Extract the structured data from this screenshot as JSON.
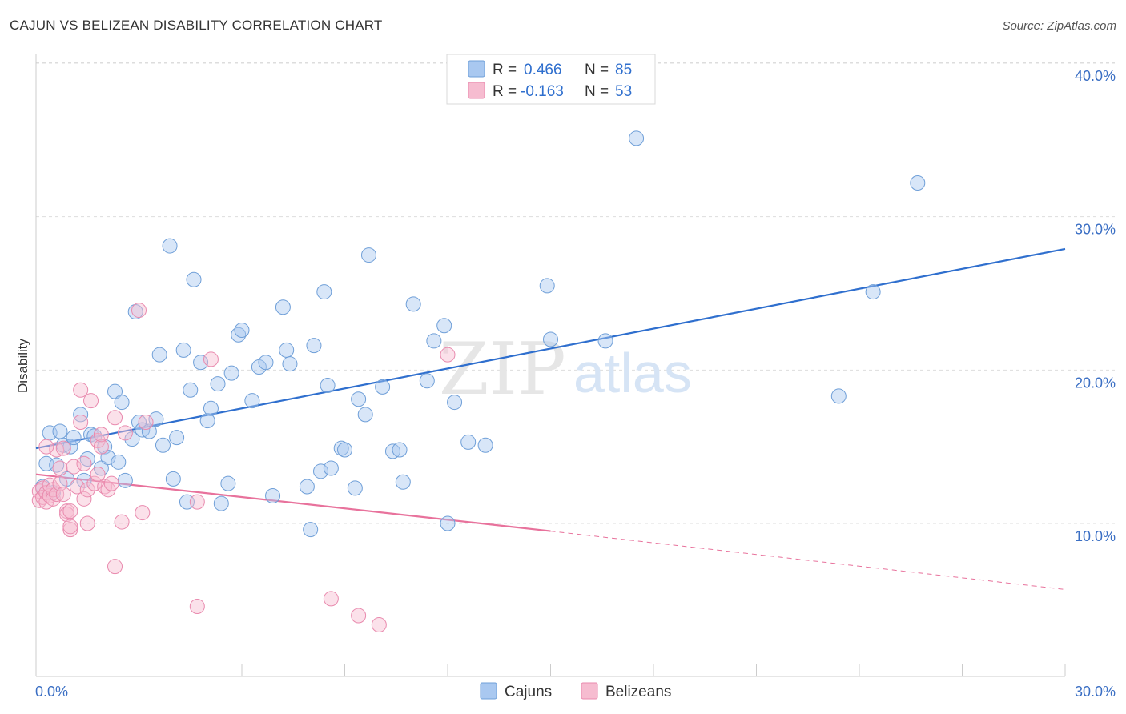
{
  "header": {
    "title": "CAJUN VS BELIZEAN DISABILITY CORRELATION CHART",
    "source": "Source: ZipAtlas.com"
  },
  "watermark": {
    "zip": "ZIP",
    "atlas": "atlas"
  },
  "colors": {
    "cajun_fill": "#a9c8f0",
    "cajun_stroke": "#6f9fd8",
    "cajun_line": "#2f6fce",
    "belizean_fill": "#f6bcd0",
    "belizean_stroke": "#e98aae",
    "belizean_line": "#e8729c",
    "axis_label": "#3b6fc4",
    "grid": "#dddddd"
  },
  "legend_box": {
    "rows": [
      {
        "r_label": "R =",
        "r_value": "0.466",
        "n_label": "N =",
        "n_value": "85"
      },
      {
        "r_label": "R =",
        "r_value": "-0.163",
        "n_label": "N =",
        "n_value": "53"
      }
    ]
  },
  "chart_data": {
    "type": "scatter",
    "title": "CAJUN VS BELIZEAN DISABILITY CORRELATION CHART",
    "xlabel": "",
    "ylabel": "Disability",
    "xlim": [
      0,
      30
    ],
    "ylim": [
      0,
      40.5
    ],
    "x_tick_labels": [
      "0.0%",
      "30.0%"
    ],
    "y_ticks": [
      10,
      20,
      30,
      40
    ],
    "y_tick_labels": [
      "10.0%",
      "20.0%",
      "30.0%",
      "40.0%"
    ],
    "grid": true,
    "legend_position": "bottom-center",
    "series": [
      {
        "name": "Cajuns",
        "r": 0.466,
        "n": 85,
        "trend": {
          "x0": 0,
          "y0": 14.9,
          "x1": 30,
          "y1": 27.9
        },
        "points": [
          [
            0.2,
            12.4
          ],
          [
            0.3,
            13.9
          ],
          [
            0.4,
            15.9
          ],
          [
            0.6,
            13.8
          ],
          [
            0.7,
            16.0
          ],
          [
            0.8,
            15.1
          ],
          [
            1.0,
            15.0
          ],
          [
            1.1,
            15.6
          ],
          [
            1.3,
            17.1
          ],
          [
            1.4,
            12.8
          ],
          [
            1.5,
            14.2
          ],
          [
            1.6,
            15.8
          ],
          [
            1.7,
            15.7
          ],
          [
            1.9,
            13.6
          ],
          [
            2.0,
            15.0
          ],
          [
            2.1,
            14.3
          ],
          [
            2.3,
            18.6
          ],
          [
            2.4,
            14.0
          ],
          [
            2.5,
            17.9
          ],
          [
            2.6,
            12.8
          ],
          [
            2.8,
            15.5
          ],
          [
            2.9,
            23.8
          ],
          [
            3.0,
            16.6
          ],
          [
            3.1,
            16.1
          ],
          [
            3.3,
            16.0
          ],
          [
            3.5,
            16.8
          ],
          [
            3.6,
            21.0
          ],
          [
            3.7,
            15.1
          ],
          [
            3.9,
            28.1
          ],
          [
            4.0,
            12.9
          ],
          [
            4.1,
            15.6
          ],
          [
            4.3,
            21.3
          ],
          [
            4.4,
            11.4
          ],
          [
            4.5,
            18.7
          ],
          [
            4.6,
            25.9
          ],
          [
            4.8,
            20.5
          ],
          [
            5.0,
            16.7
          ],
          [
            5.1,
            17.5
          ],
          [
            5.3,
            19.1
          ],
          [
            5.4,
            11.3
          ],
          [
            5.6,
            12.6
          ],
          [
            5.7,
            19.8
          ],
          [
            5.9,
            22.3
          ],
          [
            6.0,
            22.6
          ],
          [
            6.3,
            18.0
          ],
          [
            6.5,
            20.2
          ],
          [
            6.7,
            20.5
          ],
          [
            6.9,
            11.8
          ],
          [
            7.2,
            24.1
          ],
          [
            7.3,
            21.3
          ],
          [
            7.4,
            20.4
          ],
          [
            7.9,
            12.4
          ],
          [
            8.0,
            9.6
          ],
          [
            8.1,
            21.6
          ],
          [
            8.3,
            13.4
          ],
          [
            8.4,
            25.1
          ],
          [
            8.5,
            19.0
          ],
          [
            8.6,
            13.6
          ],
          [
            8.9,
            14.9
          ],
          [
            9.0,
            14.8
          ],
          [
            9.3,
            12.3
          ],
          [
            9.4,
            18.1
          ],
          [
            9.6,
            17.1
          ],
          [
            9.7,
            27.5
          ],
          [
            10.1,
            18.9
          ],
          [
            10.4,
            14.7
          ],
          [
            10.6,
            14.8
          ],
          [
            10.7,
            12.7
          ],
          [
            11.0,
            24.3
          ],
          [
            11.4,
            19.3
          ],
          [
            11.6,
            21.9
          ],
          [
            11.9,
            22.9
          ],
          [
            12.0,
            10.0
          ],
          [
            12.2,
            17.9
          ],
          [
            12.6,
            15.3
          ],
          [
            13.1,
            15.1
          ],
          [
            14.9,
            25.5
          ],
          [
            15.0,
            22.0
          ],
          [
            16.6,
            21.9
          ],
          [
            17.5,
            35.1
          ],
          [
            23.4,
            18.3
          ],
          [
            24.4,
            25.1
          ],
          [
            25.7,
            32.2
          ],
          [
            0.5,
            12.0
          ],
          [
            0.9,
            12.9
          ]
        ]
      },
      {
        "name": "Belizeans",
        "r": -0.163,
        "n": 53,
        "trend": {
          "x0": 0,
          "y0": 13.2,
          "x1": 15,
          "y1": 9.5,
          "x_dash_end": 30,
          "y_dash_end": 5.7
        },
        "points": [
          [
            0.1,
            12.1
          ],
          [
            0.1,
            11.5
          ],
          [
            0.2,
            12.3
          ],
          [
            0.2,
            11.7
          ],
          [
            0.3,
            12.0
          ],
          [
            0.3,
            11.4
          ],
          [
            0.4,
            11.8
          ],
          [
            0.4,
            12.5
          ],
          [
            0.5,
            11.6
          ],
          [
            0.5,
            12.2
          ],
          [
            0.6,
            11.9
          ],
          [
            0.6,
            14.8
          ],
          [
            0.7,
            12.6
          ],
          [
            0.7,
            13.6
          ],
          [
            0.8,
            11.9
          ],
          [
            0.8,
            14.9
          ],
          [
            0.9,
            10.8
          ],
          [
            0.9,
            10.6
          ],
          [
            1.0,
            10.8
          ],
          [
            1.0,
            9.6
          ],
          [
            1.0,
            9.8
          ],
          [
            1.1,
            13.7
          ],
          [
            1.2,
            12.4
          ],
          [
            1.3,
            18.7
          ],
          [
            1.3,
            16.6
          ],
          [
            1.4,
            13.9
          ],
          [
            1.4,
            11.6
          ],
          [
            1.5,
            10.0
          ],
          [
            1.5,
            12.2
          ],
          [
            1.6,
            18.0
          ],
          [
            1.7,
            12.6
          ],
          [
            1.8,
            13.2
          ],
          [
            1.8,
            15.4
          ],
          [
            1.9,
            15.0
          ],
          [
            1.9,
            15.8
          ],
          [
            2.0,
            12.4
          ],
          [
            2.1,
            12.2
          ],
          [
            2.2,
            12.6
          ],
          [
            2.3,
            16.9
          ],
          [
            2.3,
            7.2
          ],
          [
            2.5,
            10.1
          ],
          [
            2.6,
            15.9
          ],
          [
            3.1,
            10.7
          ],
          [
            3.2,
            16.6
          ],
          [
            3.0,
            23.9
          ],
          [
            4.7,
            11.4
          ],
          [
            4.7,
            4.6
          ],
          [
            5.1,
            20.7
          ],
          [
            8.6,
            5.1
          ],
          [
            9.4,
            4.0
          ],
          [
            10.0,
            3.4
          ],
          [
            12.0,
            21.0
          ],
          [
            0.3,
            15.0
          ]
        ]
      }
    ]
  }
}
